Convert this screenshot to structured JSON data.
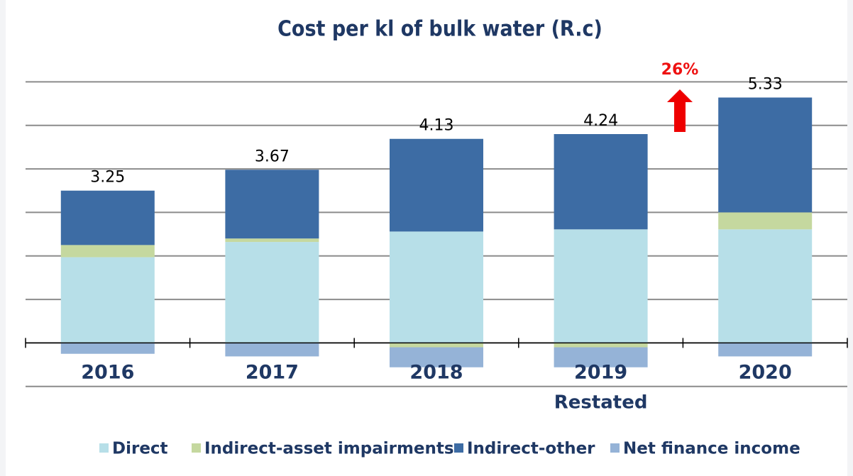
{
  "chart_data": {
    "type": "stacked_bar",
    "title": "Cost per kl of bulk water (R.c)",
    "categories": [
      "2016",
      "2017",
      "2018",
      "2019",
      "2020"
    ],
    "series": [
      {
        "name": "Direct",
        "color": "#b7dfe8",
        "values": [
          1.97,
          2.32,
          2.56,
          2.61,
          2.61
        ]
      },
      {
        "name": "Indirect-asset impairments",
        "color": "#c5d89f",
        "values": [
          0.28,
          0.08,
          -0.1,
          -0.1,
          0.39
        ]
      },
      {
        "name": "Indirect-other",
        "color": "#3d6ca4",
        "values": [
          1.25,
          1.58,
          2.13,
          2.19,
          2.64
        ]
      },
      {
        "name": "Net finance income",
        "color": "#95b3d7",
        "values": [
          -0.25,
          -0.31,
          -0.46,
          -0.46,
          -0.31
        ]
      }
    ],
    "totals": [
      3.25,
      3.67,
      4.13,
      4.24,
      5.33
    ],
    "annotations": [
      "26%",
      "Restated"
    ],
    "ylim": [
      -1.2,
      6.3
    ],
    "yticks": [
      -1,
      0,
      1,
      2,
      3,
      4,
      5,
      6
    ],
    "grid": true
  }
}
